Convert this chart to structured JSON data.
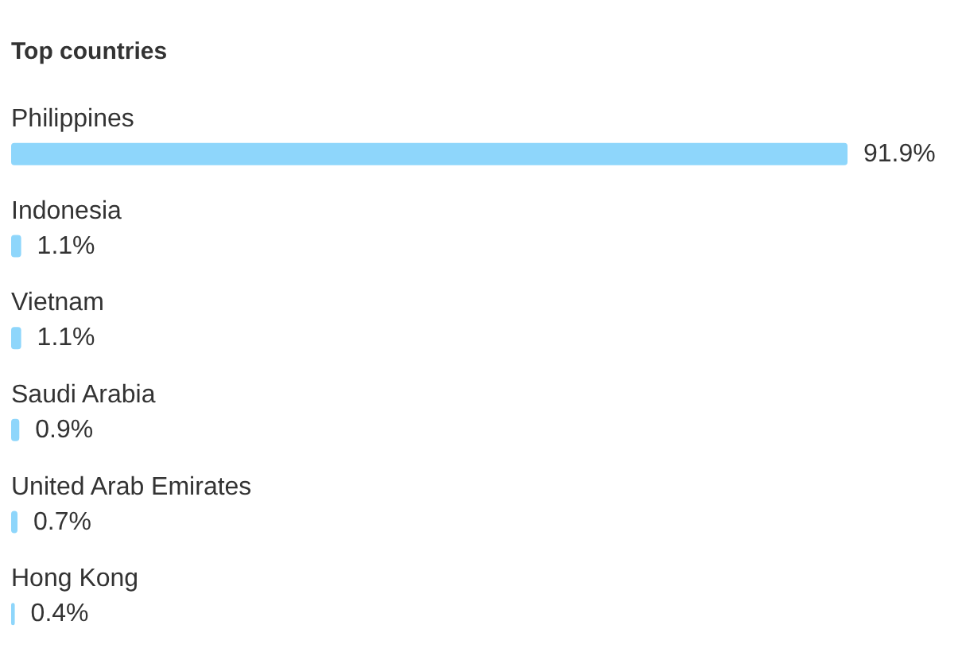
{
  "chart_data": {
    "type": "bar",
    "orientation": "horizontal",
    "title": "Top countries",
    "categories": [
      "Philippines",
      "Indonesia",
      "Vietnam",
      "Saudi Arabia",
      "United Arab Emirates",
      "Hong Kong"
    ],
    "values": [
      91.9,
      1.1,
      1.1,
      0.9,
      0.7,
      0.4
    ],
    "value_labels": [
      "91.9%",
      "1.1%",
      "1.1%",
      "0.9%",
      "0.7%",
      "0.4%"
    ],
    "color": "#8ed6fb",
    "tick_labels": "y"
  }
}
